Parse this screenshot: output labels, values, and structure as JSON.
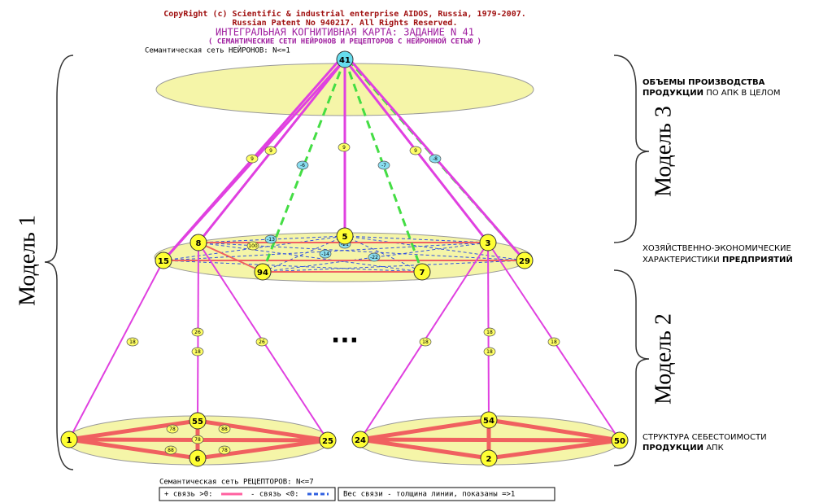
{
  "header": {
    "copyright": "CopyRight (c) Scientific & industrial enterprise AIDOS, Russia, 1979-2007.",
    "patent": "Russian Patent No 940217. All Rights Reserved.",
    "title": "ИНТЕГРАЛЬНАЯ КОГНИТИВНАЯ КАРТА: ЗАДАНИЕ N 41",
    "subtitle": "( СЕМАНТИЧЕСКИЕ СЕТИ НЕЙРОНОВ И РЕЦЕПТОРОВ С НЕЙРОННОЙ СЕТЬЮ )"
  },
  "neurons_caption": "Семантическая сеть НЕЙРОНОВ: N<=1",
  "receptors_caption": "Семантическая сеть РЕЦЕПТОРОВ: N<=7",
  "legend": {
    "positive": "+ связь >0:",
    "negative": "- связь <0:",
    "weight": "Вес связи - толщина линии, показаны =>1"
  },
  "models": [
    "Модель 1",
    "Модель 2",
    "Модель 3"
  ],
  "annotations": {
    "top": {
      "line1_bold": "ОБЪЕМЫ ПРОИЗВОДСТВА",
      "line2_bold": "ПРОДУКЦИИ",
      "line2": "ПО АПК В ЦЕЛОМ"
    },
    "middle": {
      "line1": "ХОЗЯЙСТВЕННО-ЭКОНОМИЧЕСКИЕ",
      "line2": "ХАРАКТЕРИСТИКИ",
      "line2_bold": "ПРЕДПРИЯТИЙ"
    },
    "bottom": {
      "line1": "СТРУКТУРА СЕБЕСТОИМОСТИ",
      "line2_bold": "ПРОДУКЦИИ",
      "line2": "АПК"
    }
  },
  "nodes": {
    "top": [
      "41"
    ],
    "middle": [
      "15",
      "8",
      "5",
      "3",
      "29",
      "94",
      "7"
    ],
    "bottom_left": [
      "1",
      "55",
      "6",
      "25"
    ],
    "bottom_right": [
      "24",
      "54",
      "2",
      "50"
    ]
  },
  "edge_labels": [
    "9",
    "9",
    "-6",
    "9",
    "-7",
    "9",
    "-8",
    "18",
    "26",
    "18",
    "26",
    "18",
    "18",
    "18",
    "18",
    "78",
    "88",
    "88",
    "78",
    "78",
    "100",
    "-13",
    "-21",
    "-14",
    "-22"
  ],
  "ellipsis": "..."
}
